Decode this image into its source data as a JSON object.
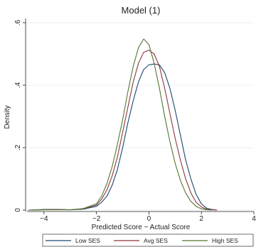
{
  "chart_data": {
    "type": "line",
    "title": "Model (1)",
    "xlabel": "Predicted Score − Actual Score",
    "ylabel": "Density",
    "xlim": [
      -4.7,
      4.0
    ],
    "ylim": [
      0,
      0.6
    ],
    "xticks": [
      -4,
      -2,
      0,
      2,
      4
    ],
    "xtick_labels": [
      "−4",
      "−2",
      "0",
      "2",
      "4"
    ],
    "yticks": [
      0,
      0.2,
      0.4,
      0.6
    ],
    "ytick_labels": [
      "0",
      ".2",
      ".4",
      ".6"
    ],
    "grid": true,
    "legend_position": "bottom",
    "series": [
      {
        "name": "Low SES",
        "color": "#1a476f",
        "x": [
          -4.6,
          -4.0,
          -3.5,
          -3.0,
          -2.5,
          -2.0,
          -1.8,
          -1.6,
          -1.4,
          -1.2,
          -1.0,
          -0.8,
          -0.6,
          -0.4,
          -0.2,
          0.0,
          0.2,
          0.4,
          0.6,
          0.8,
          1.0,
          1.2,
          1.4,
          1.6,
          1.8,
          2.0,
          2.2,
          2.4,
          2.6
        ],
        "y": [
          0.0,
          0.002,
          0.002,
          0.001,
          0.003,
          0.012,
          0.025,
          0.045,
          0.08,
          0.13,
          0.2,
          0.28,
          0.35,
          0.41,
          0.45,
          0.465,
          0.468,
          0.465,
          0.44,
          0.39,
          0.32,
          0.24,
          0.16,
          0.1,
          0.05,
          0.02,
          0.006,
          0.002,
          0.0
        ]
      },
      {
        "name": "Avg SES",
        "color": "#90353b",
        "x": [
          -4.6,
          -4.0,
          -3.5,
          -3.0,
          -2.5,
          -2.0,
          -1.8,
          -1.6,
          -1.4,
          -1.2,
          -1.0,
          -0.8,
          -0.6,
          -0.4,
          -0.2,
          0.0,
          0.2,
          0.4,
          0.6,
          0.8,
          1.0,
          1.2,
          1.4,
          1.6,
          1.8,
          2.0,
          2.2,
          2.4,
          2.6
        ],
        "y": [
          0.0,
          0.001,
          0.002,
          0.001,
          0.004,
          0.016,
          0.035,
          0.065,
          0.11,
          0.17,
          0.25,
          0.33,
          0.41,
          0.47,
          0.505,
          0.512,
          0.5,
          0.46,
          0.39,
          0.31,
          0.23,
          0.16,
          0.1,
          0.055,
          0.025,
          0.01,
          0.003,
          0.001,
          0.0
        ]
      },
      {
        "name": "High SES",
        "color": "#55752f",
        "x": [
          -4.6,
          -4.0,
          -3.5,
          -3.0,
          -2.5,
          -2.0,
          -1.8,
          -1.6,
          -1.4,
          -1.2,
          -1.0,
          -0.8,
          -0.6,
          -0.4,
          -0.2,
          0.0,
          0.2,
          0.4,
          0.6,
          0.8,
          1.0,
          1.2,
          1.4,
          1.6,
          1.8,
          2.0,
          2.2,
          2.4
        ],
        "y": [
          0.0,
          0.001,
          0.001,
          0.001,
          0.005,
          0.02,
          0.045,
          0.085,
          0.14,
          0.21,
          0.29,
          0.38,
          0.46,
          0.52,
          0.548,
          0.53,
          0.47,
          0.39,
          0.3,
          0.22,
          0.15,
          0.095,
          0.055,
          0.028,
          0.012,
          0.004,
          0.001,
          0.0
        ]
      }
    ]
  }
}
